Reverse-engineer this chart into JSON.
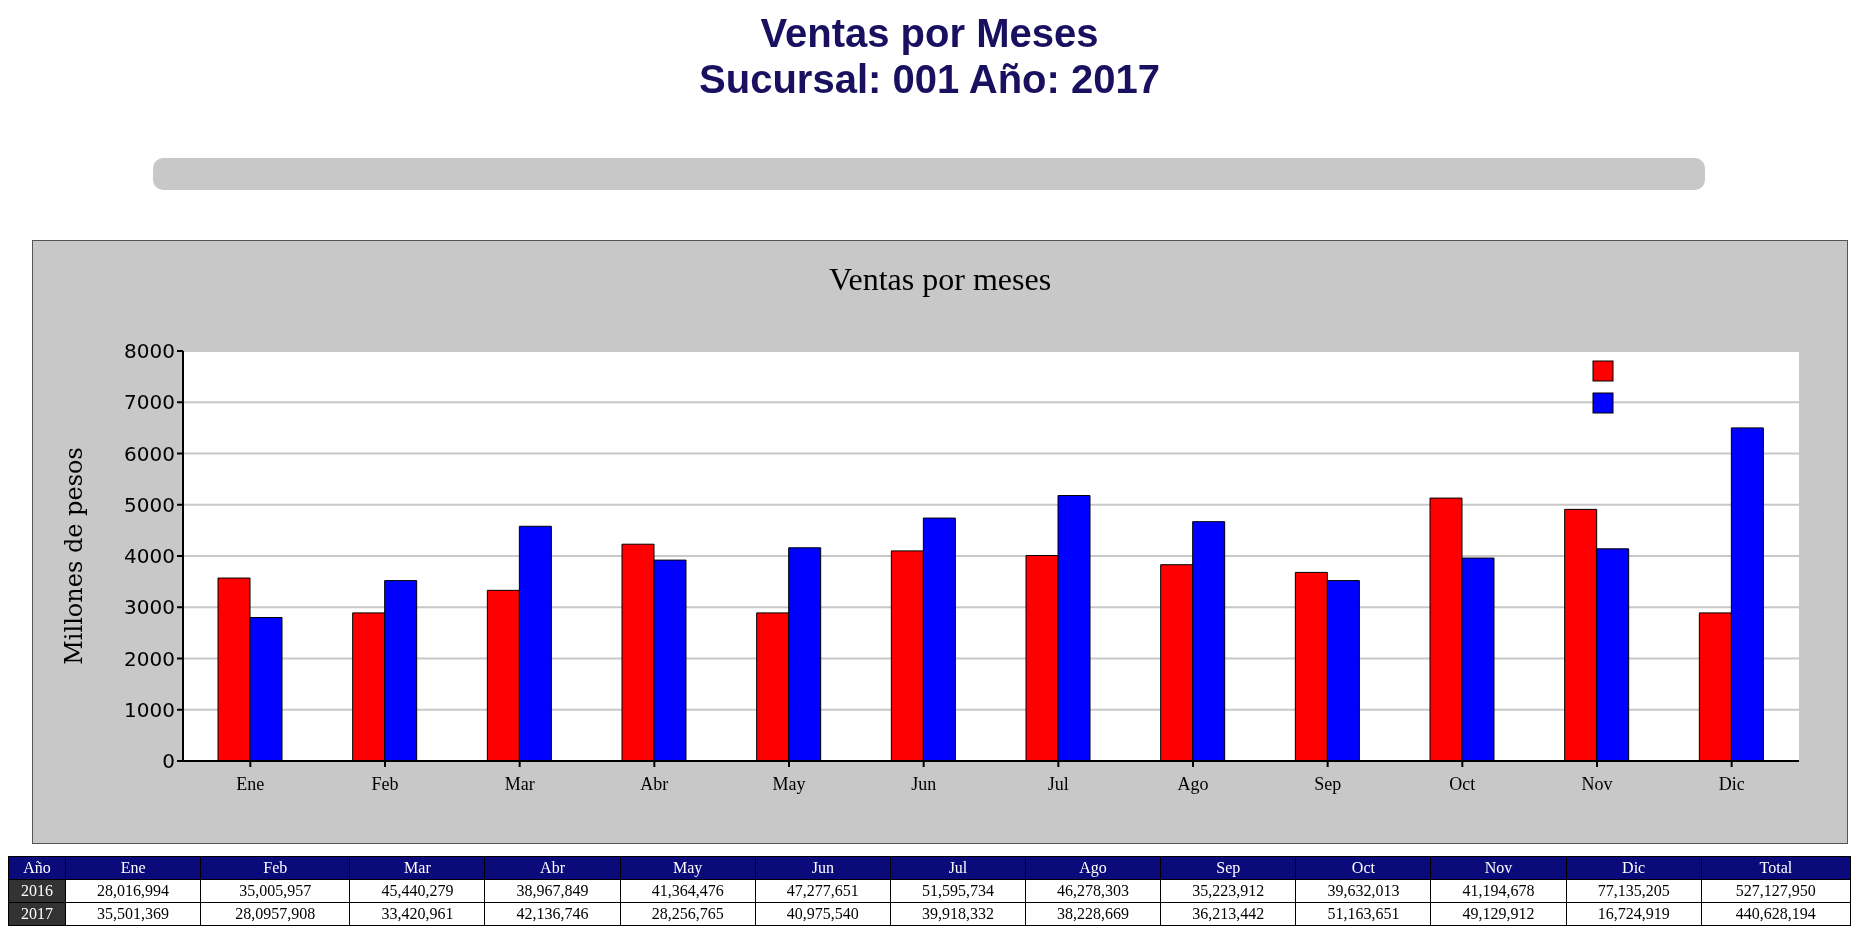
{
  "chart_data": [
    {
      "type": "other",
      "title": "Ventas por Meses",
      "subtitle": "Sucursal: 001 Año: 2017"
    },
    {
      "type": "bar",
      "title": "Ventas por meses",
      "ylabel": "Millones de pesos",
      "categories": [
        "Ene",
        "Feb",
        "Mar",
        "Abr",
        "May",
        "Jun",
        "Jul",
        "Ago",
        "Sep",
        "Oct",
        "Nov",
        "Dic"
      ],
      "series": [
        {
          "color": "#ff0000",
          "values": [
            3570,
            2890,
            3330,
            4230,
            2890,
            4100,
            4010,
            3830,
            3680,
            5130,
            4910,
            2890
          ]
        },
        {
          "color": "#0000ff",
          "values": [
            2800,
            3520,
            4580,
            3920,
            4160,
            4740,
            5180,
            4670,
            3520,
            3960,
            4140,
            6500
          ]
        }
      ],
      "ylim": [
        0,
        8000
      ],
      "yticks": [
        0,
        1000,
        2000,
        3000,
        4000,
        5000,
        6000,
        7000,
        8000
      ],
      "grid": "y"
    },
    {
      "type": "other",
      "ylabel": "Año",
      "categories": [
        "Ene",
        "Feb",
        "Mar",
        "Abr",
        "May",
        "Jun",
        "Jul",
        "Ago",
        "Sep",
        "Oct",
        "Nov",
        "Dic",
        "Total"
      ],
      "y_categories": [
        "2016",
        "2017"
      ],
      "cell_labels": [
        [
          "28,016,994",
          "35,005,957",
          "45,440,279",
          "38,967,849",
          "41,364,476",
          "47,277,651",
          "51,595,734",
          "46,278,303",
          "35,223,912",
          "39,632,013",
          "41,194,678",
          "77,135,205",
          "527,127,950"
        ],
        [
          "35,501,369",
          "28,0957,908",
          "33,420,961",
          "42,136,746",
          "28,256,765",
          "40,975,540",
          "39,918,332",
          "38,228,669",
          "36,213,442",
          "51,163,651",
          "49,129,912",
          "16,724,919",
          "440,628,194"
        ]
      ]
    }
  ]
}
